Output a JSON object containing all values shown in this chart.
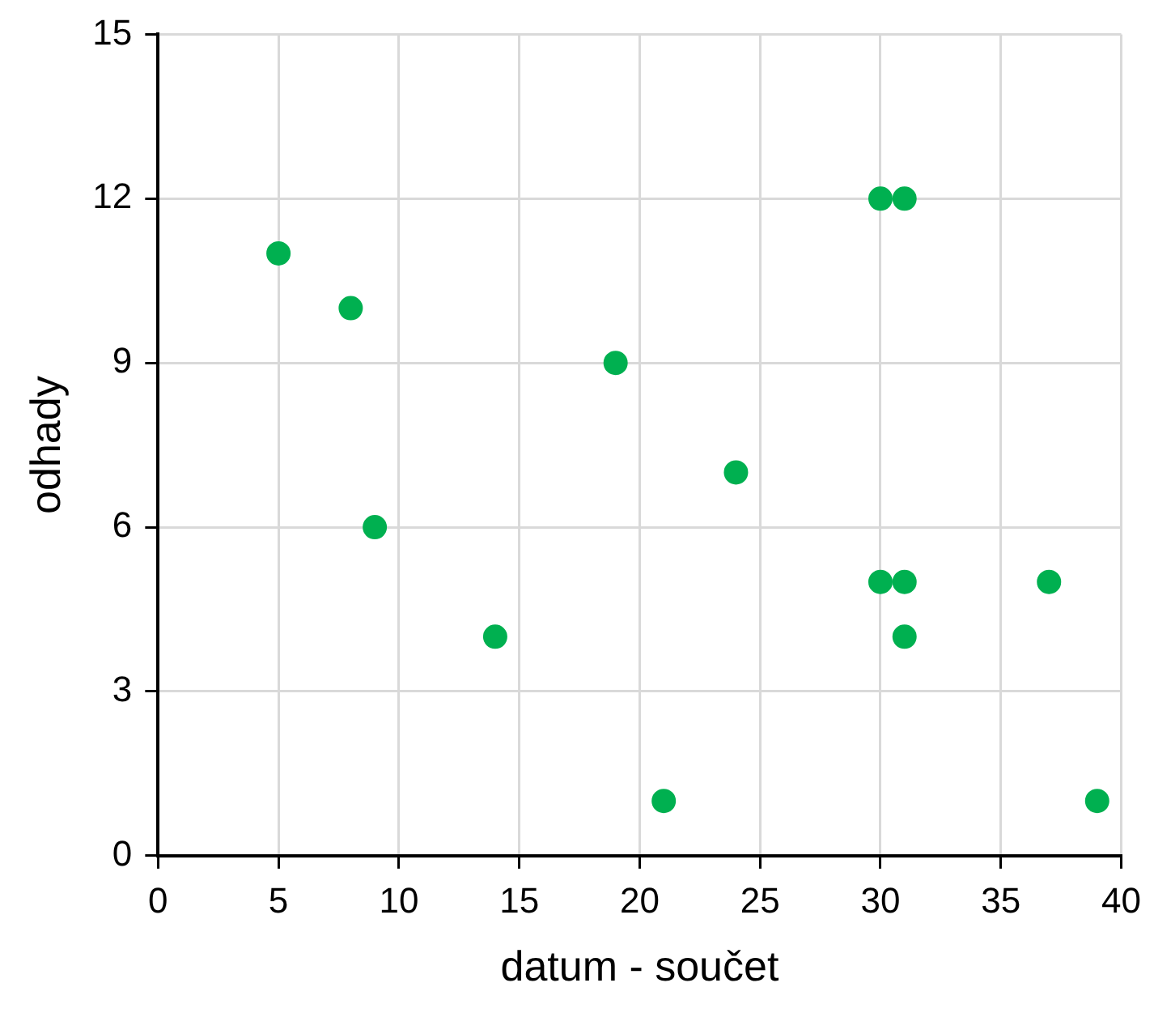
{
  "chart_data": {
    "type": "scatter",
    "xlabel": "datum - součet",
    "ylabel": "odhady",
    "x": [
      5,
      8,
      9,
      14,
      19,
      21,
      24,
      30,
      31,
      30,
      31,
      31,
      37,
      39
    ],
    "series": [
      {
        "color": "#00b050",
        "values": [
          11,
          10,
          6,
          4,
          9,
          1,
          7,
          12,
          12,
          5,
          5,
          4,
          5,
          1
        ]
      }
    ],
    "xlim": [
      0,
      40
    ],
    "xticks": [
      0,
      5,
      10,
      15,
      20,
      25,
      30,
      35,
      40
    ],
    "ylim": [
      0,
      15
    ],
    "yticks": [
      0,
      3,
      6,
      9,
      12,
      15
    ],
    "grid": true,
    "marker": "circle"
  }
}
